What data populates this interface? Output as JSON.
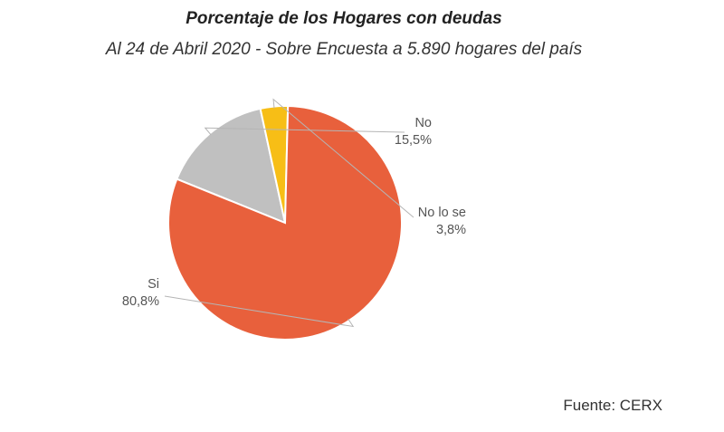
{
  "header": {
    "title": "Porcentaje de los Hogares con deudas",
    "subtitle": "Al 24 de Abril 2020 - Sobre Encuesta a 5.890 hogares del país"
  },
  "chart_data": {
    "type": "pie",
    "title": "Porcentaje de los Hogares con deudas",
    "subtitle": "Al 24 de Abril 2020 - Sobre Encuesta a 5.890 hogares del país",
    "slices": [
      {
        "label": "Si",
        "value": 80.8,
        "value_label": "80,8%",
        "color": "#e8603c"
      },
      {
        "label": "No",
        "value": 15.5,
        "value_label": "15,5%",
        "color": "#c0c0c0"
      },
      {
        "label": "No lo se",
        "value": 3.8,
        "value_label": "3,8%",
        "color": "#f7be16"
      }
    ],
    "legend": "none"
  },
  "footer": {
    "source": "Fuente: CERX"
  }
}
